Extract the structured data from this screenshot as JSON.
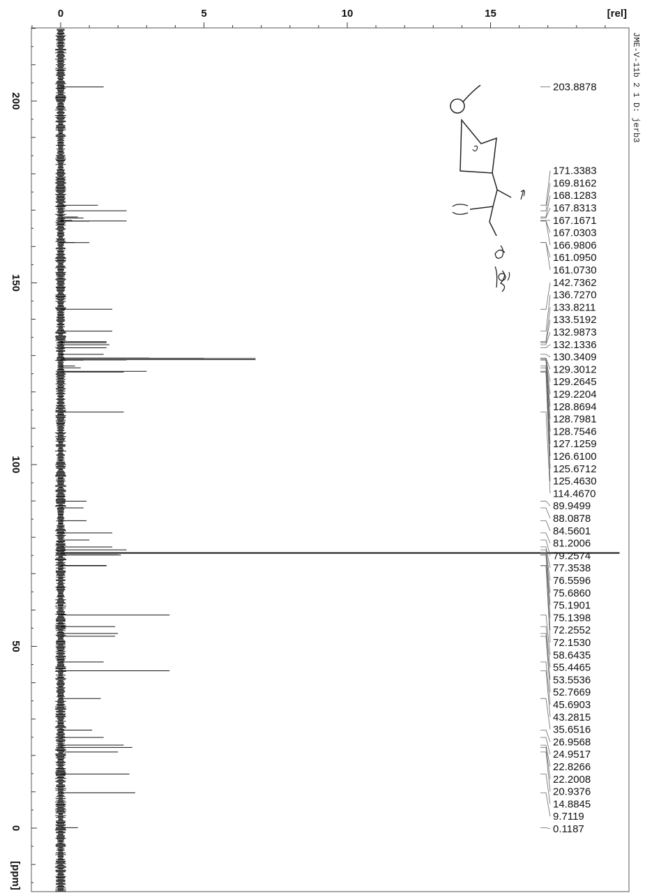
{
  "sample_header": "JME-V-11b  2 1 D: jerb3",
  "chart_data": {
    "type": "line",
    "title": "",
    "x_axis": {
      "label": "[rel]",
      "ticks": [
        0,
        5,
        10,
        15
      ],
      "range": [
        0,
        19.5
      ],
      "position": "top"
    },
    "y_axis": {
      "label": "[ppm]",
      "ticks": [
        200,
        150,
        100,
        50,
        0
      ],
      "range": [
        -8,
        218
      ],
      "reversed": true
    },
    "grid": false,
    "peaks_ppm": [
      203.8878,
      171.3383,
      169.8162,
      168.1283,
      167.8313,
      167.1671,
      167.0303,
      166.9806,
      161.095,
      161.073,
      142.7362,
      136.727,
      133.8211,
      133.5192,
      132.9873,
      132.1336,
      130.3409,
      129.3012,
      129.2645,
      129.2204,
      128.8694,
      128.7981,
      128.7546,
      127.1259,
      126.61,
      125.6712,
      125.463,
      114.467,
      89.9499,
      88.0878,
      84.5601,
      81.2006,
      79.2574,
      77.3538,
      76.5596,
      75.686,
      75.1901,
      75.1398,
      72.2552,
      72.153,
      58.6435,
      55.4465,
      53.5536,
      52.7669,
      45.6903,
      43.2815,
      35.6516,
      26.9568,
      24.9517,
      22.8266,
      22.2008,
      20.9376,
      14.8845,
      9.7119,
      0.1187
    ],
    "peak_labels": [
      "203.8878",
      "171.3383",
      "169.8162",
      "168.1283",
      "167.8313",
      "167.1671",
      "167.0303",
      "166.9806",
      "161.0950",
      "161.0730",
      "142.7362",
      "136.7270",
      "133.8211",
      "133.5192",
      "132.9873",
      "132.1336",
      "130.3409",
      "129.3012",
      "129.2645",
      "129.2204",
      "128.8694",
      "128.7981",
      "128.7546",
      "127.1259",
      "126.6100",
      "125.6712",
      "125.4630",
      "114.4670",
      "89.9499",
      "88.0878",
      "84.5601",
      "81.2006",
      "79.2574",
      "77.3538",
      "76.5596",
      "75.6860",
      "75.1901",
      "75.1398",
      "72.2552",
      "72.1530",
      "58.6435",
      "55.4465",
      "53.5536",
      "52.7669",
      "45.6903",
      "43.2815",
      "35.6516",
      "26.9568",
      "24.9517",
      "22.8266",
      "22.2008",
      "20.9376",
      "14.8845",
      "9.7119",
      "0.1187"
    ],
    "intensity_rel": [
      1.5,
      1.3,
      2.3,
      0.6,
      0.8,
      0.4,
      2.3,
      1.0,
      0.5,
      1.0,
      1.8,
      1.8,
      1.6,
      1.6,
      1.7,
      1.6,
      1.5,
      3.1,
      5.0,
      6.8,
      6.8,
      2.3,
      0.8,
      0.5,
      0.7,
      3.0,
      2.2,
      2.2,
      0.9,
      0.8,
      0.9,
      1.8,
      1.0,
      1.8,
      2.3,
      19.5,
      2.0,
      2.1,
      1.6,
      1.6,
      3.8,
      1.9,
      2.0,
      1.9,
      1.5,
      3.8,
      1.4,
      1.1,
      1.5,
      2.2,
      2.5,
      2.0,
      2.4,
      2.6,
      0.6
    ]
  }
}
